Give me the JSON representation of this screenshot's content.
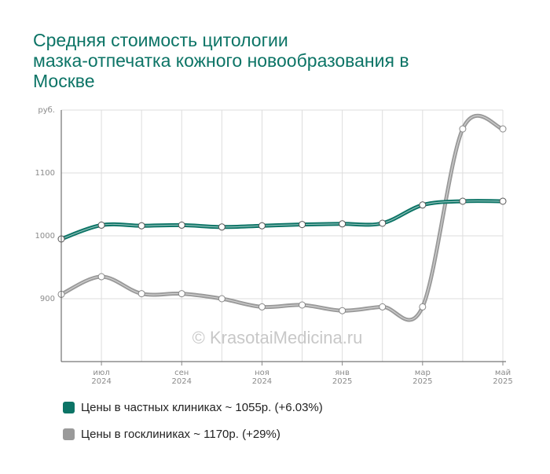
{
  "title_lines": [
    "Средняя стоимость цитологии",
    "мазка-отпечатка кожного новообразования в",
    "Москве"
  ],
  "watermark": "© KrasotaiMedicina.ru",
  "colors": {
    "private": "#0c7466",
    "public": "#9a9a9a",
    "title": "#0c7466",
    "grid": "#dddddd"
  },
  "chart_data": {
    "type": "line",
    "title": "Средняя стоимость цитологии мазка-отпечатка кожного новообразования в Москве",
    "ylabel": "руб.",
    "ylim": [
      800,
      1200
    ],
    "yticks": [
      {
        "value": 900,
        "label": "900"
      },
      {
        "value": 1000,
        "label": "1000"
      },
      {
        "value": 1100,
        "label": "1100"
      },
      {
        "value": 1200,
        "label": "руб."
      }
    ],
    "x": [
      "2024-06",
      "2024-07",
      "2024-08",
      "2024-09",
      "2024-10",
      "2024-11",
      "2024-12",
      "2025-01",
      "2025-02",
      "2025-03",
      "2025-04",
      "2025-05"
    ],
    "xticks": [
      {
        "month": "июл",
        "year": "2024"
      },
      {
        "month": "сен",
        "year": "2024"
      },
      {
        "month": "ноя",
        "year": "2024"
      },
      {
        "month": "янв",
        "year": "2025"
      },
      {
        "month": "мар",
        "year": "2025"
      },
      {
        "month": "май",
        "year": "2025"
      }
    ],
    "grid": true,
    "legend_position": "bottom",
    "series": [
      {
        "name": "Цены в частных клиниках ~ 1055р. (+6.03%)",
        "color": "#0c7466",
        "values": [
          995,
          1017,
          1016,
          1017,
          1014,
          1016,
          1018,
          1019,
          1020,
          1049,
          1055,
          1055
        ]
      },
      {
        "name": "Цены в госклиниках ~ 1170р. (+29%)",
        "color": "#9a9a9a",
        "values": [
          907,
          935,
          908,
          908,
          900,
          887,
          890,
          881,
          887,
          887,
          1170,
          1170
        ]
      }
    ]
  }
}
